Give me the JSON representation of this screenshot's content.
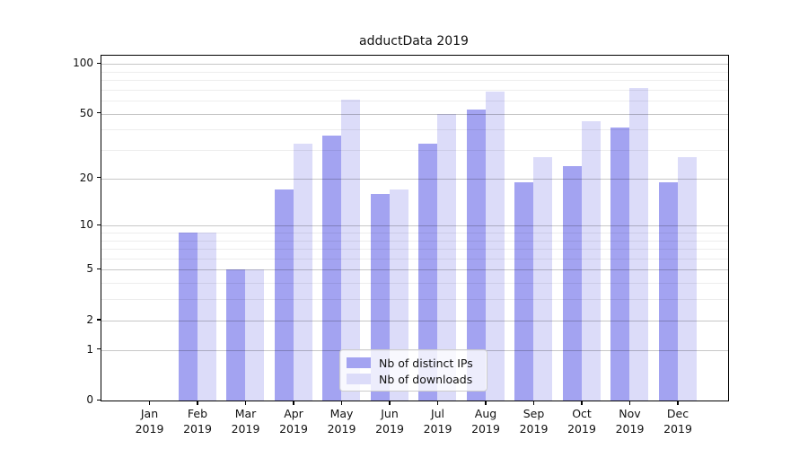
{
  "chart_data": {
    "type": "bar",
    "title": "adductData 2019",
    "categories": [
      "Jan",
      "Feb",
      "Mar",
      "Apr",
      "May",
      "Jun",
      "Jul",
      "Aug",
      "Sep",
      "Oct",
      "Nov",
      "Dec"
    ],
    "year_label": "2019",
    "series": [
      {
        "name": "Nb of distinct IPs",
        "color": "#a3a3f1",
        "values": [
          0,
          9,
          5,
          17,
          37,
          16,
          33,
          53,
          19,
          24,
          41,
          19
        ]
      },
      {
        "name": "Nb of downloads",
        "color": "#dcdcf9",
        "values": [
          0,
          9,
          5,
          33,
          61,
          17,
          50,
          68,
          27,
          45,
          72,
          27
        ]
      }
    ],
    "xlabel": "",
    "ylabel": "",
    "yscale": "symlog-log1p",
    "yticks": [
      100,
      50,
      20,
      10,
      5,
      2,
      1,
      0
    ],
    "minor_gridlines": [
      3,
      4,
      6,
      7,
      8,
      9,
      30,
      40,
      60,
      70,
      80,
      90
    ],
    "ylim": [
      0,
      112
    ],
    "grid": "horizontal major+minor, drawn over bars",
    "legend_position": "lower center"
  },
  "colors": {
    "background": "#ffffff",
    "spine": "#000000",
    "grid_major": "rgba(0,0,0,0.22)",
    "grid_minor": "rgba(0,0,0,0.07)",
    "text": "#111111"
  }
}
